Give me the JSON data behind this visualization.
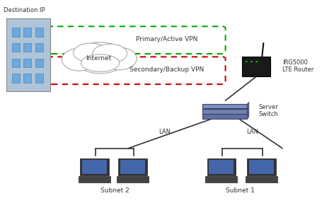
{
  "bg_color": "#ffffff",
  "dest_label": "Destination IP",
  "internet_label": "Internet",
  "router_label": "IRG5000\nLTE Router",
  "switch_label": "Server\nSwitch",
  "subnet2_label": "Subnet 2",
  "subnet1_label": "Subnet 1",
  "vpn_primary_label": "Primary/Active VPN",
  "vpn_secondary_label": "Secondary/Backup VPN",
  "lan_label": "LAN",
  "primary_color": "#00aa00",
  "secondary_color": "#cc0000",
  "line_color": "#333333",
  "router_body_color": "#1a1a1a",
  "laptop_screen_color": "#4466aa",
  "building_wall": "#b0c4d8",
  "building_window": "#6fa8dc"
}
